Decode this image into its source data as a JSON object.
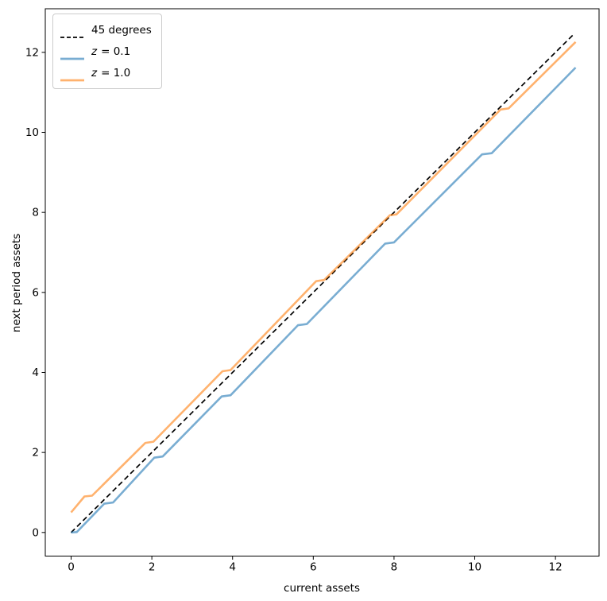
{
  "figure": {
    "background": "#ffffff",
    "frame_color": "#000000",
    "tick_color": "#000000",
    "text_color": "#000000"
  },
  "axes": {
    "xlabel": "current assets",
    "ylabel": "next period assets"
  },
  "legend": {
    "position": "upper left",
    "border_color": "#cccccc",
    "items": [
      {
        "var": "",
        "label": "45 degrees",
        "color": "#000000",
        "alpha": 1.0,
        "dashed": true
      },
      {
        "var": "z",
        "label": "= 0.1",
        "color": "#1f77b4",
        "alpha": 0.6,
        "dashed": false
      },
      {
        "var": "z",
        "label": "= 1.0",
        "color": "#ff7f0e",
        "alpha": 0.6,
        "dashed": false
      }
    ]
  },
  "chart_data": {
    "type": "line",
    "title": "",
    "xlabel": "current assets",
    "ylabel": "next period assets",
    "xlim": [
      -0.64,
      13.08
    ],
    "ylim": [
      -0.59,
      13.09
    ],
    "xticks": [
      0,
      2,
      4,
      6,
      8,
      10,
      12
    ],
    "yticks": [
      0,
      2,
      4,
      6,
      8,
      10,
      12
    ],
    "grid": false,
    "legend_position": "upper left",
    "series": [
      {
        "name": "45 degrees",
        "style": "dashed",
        "color": "#000000",
        "alpha": 1.0,
        "width": 1.7,
        "points": [
          [
            0,
            0
          ],
          [
            12.45,
            12.45
          ]
        ]
      },
      {
        "name": "z = 0.1",
        "style": "solid",
        "color": "#1f77b4",
        "alpha": 0.6,
        "width": 2.6,
        "points": [
          [
            0.0,
            0.0
          ],
          [
            0.14,
            0.01
          ],
          [
            0.82,
            0.72
          ],
          [
            1.04,
            0.75
          ],
          [
            2.06,
            1.87
          ],
          [
            2.27,
            1.9
          ],
          [
            3.73,
            3.4
          ],
          [
            3.95,
            3.43
          ],
          [
            5.62,
            5.18
          ],
          [
            5.84,
            5.21
          ],
          [
            7.78,
            7.22
          ],
          [
            8.0,
            7.25
          ],
          [
            10.18,
            9.45
          ],
          [
            10.42,
            9.48
          ],
          [
            12.5,
            11.62
          ]
        ]
      },
      {
        "name": "z = 1.0",
        "style": "solid",
        "color": "#ff7f0e",
        "alpha": 0.6,
        "width": 2.6,
        "points": [
          [
            0.0,
            0.5
          ],
          [
            0.33,
            0.9
          ],
          [
            0.52,
            0.92
          ],
          [
            1.84,
            2.24
          ],
          [
            2.04,
            2.27
          ],
          [
            3.75,
            4.03
          ],
          [
            3.95,
            4.06
          ],
          [
            6.07,
            6.28
          ],
          [
            6.27,
            6.31
          ],
          [
            7.9,
            7.93
          ],
          [
            8.06,
            7.95
          ],
          [
            10.64,
            10.57
          ],
          [
            10.84,
            10.6
          ],
          [
            12.5,
            12.26
          ]
        ]
      }
    ]
  }
}
